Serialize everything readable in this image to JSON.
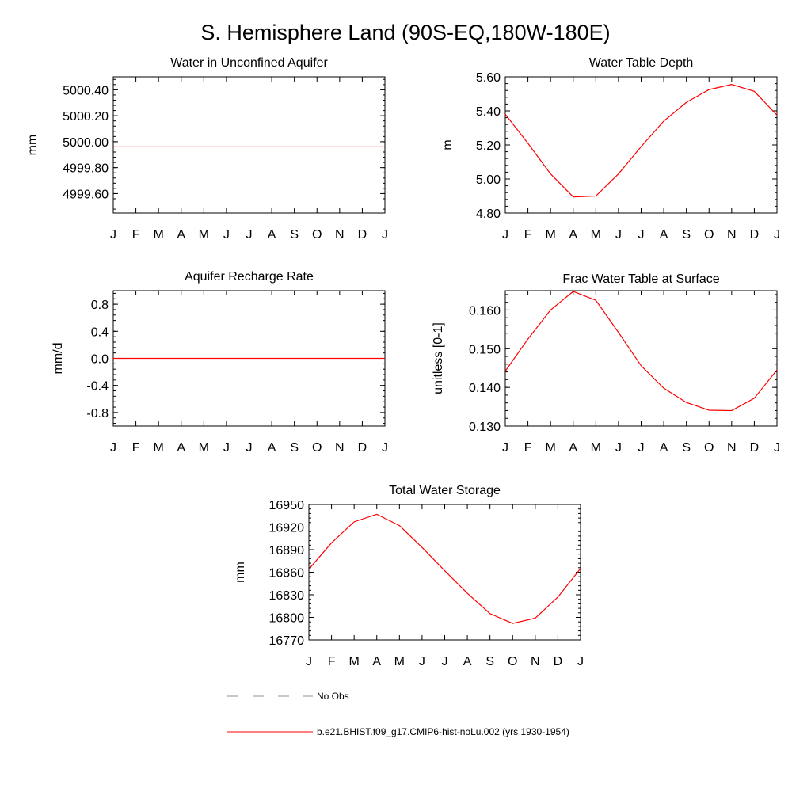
{
  "figure_title": "S. Hemisphere Land (90S-EQ,180W-180E)",
  "legend": {
    "items": [
      {
        "label": "No Obs",
        "style": "dashed",
        "color": "#8c8c8c"
      },
      {
        "label": "b.e21.BHIST.f09_g17.CMIP6-hist-noLu.002 (yrs 1930-1954)",
        "style": "solid",
        "color": "#ff0000"
      }
    ]
  },
  "colors": {
    "series": "#ff0000",
    "axis": "#000000",
    "obs": "#8c8c8c"
  },
  "chart_data": [
    {
      "type": "line",
      "title": "Water in Unconfined Aquifer",
      "ylabel": "mm",
      "x": [
        "J",
        "F",
        "M",
        "A",
        "M",
        "J",
        "J",
        "A",
        "S",
        "O",
        "N",
        "D",
        "J"
      ],
      "ylim": [
        4999.45,
        5000.5
      ],
      "yticks": [
        "4999.60",
        "4999.80",
        "5000.00",
        "5000.20",
        "5000.40"
      ],
      "ytick_values": [
        4999.6,
        4999.8,
        5000.0,
        5000.2,
        5000.4
      ],
      "series": [
        {
          "values": [
            4999.96,
            4999.96,
            4999.96,
            4999.96,
            4999.96,
            4999.96,
            4999.96,
            4999.96,
            4999.96,
            4999.96,
            4999.96,
            4999.96,
            4999.96
          ]
        }
      ]
    },
    {
      "type": "line",
      "title": "Water Table Depth",
      "ylabel": "m",
      "x": [
        "J",
        "F",
        "M",
        "A",
        "M",
        "J",
        "J",
        "A",
        "S",
        "O",
        "N",
        "D",
        "J"
      ],
      "ylim": [
        4.8,
        5.6
      ],
      "yticks": [
        "4.80",
        "5.00",
        "5.20",
        "5.40",
        "5.60"
      ],
      "ytick_values": [
        4.8,
        5.0,
        5.2,
        5.4,
        5.6
      ],
      "series": [
        {
          "values": [
            5.38,
            5.21,
            5.03,
            4.895,
            4.9,
            5.03,
            5.19,
            5.34,
            5.45,
            5.525,
            5.555,
            5.515,
            5.375
          ]
        }
      ]
    },
    {
      "type": "line",
      "title": "Aquifer Recharge Rate",
      "ylabel": "mm/d",
      "x": [
        "J",
        "F",
        "M",
        "A",
        "M",
        "J",
        "J",
        "A",
        "S",
        "O",
        "N",
        "D",
        "J"
      ],
      "ylim": [
        -1.0,
        1.0
      ],
      "yticks": [
        "-0.8",
        "-0.4",
        "0.0",
        "0.4",
        "0.8"
      ],
      "ytick_values": [
        -0.8,
        -0.4,
        0.0,
        0.4,
        0.8
      ],
      "series": [
        {
          "values": [
            0,
            0,
            0,
            0,
            0,
            0,
            0,
            0,
            0,
            0,
            0,
            0,
            0
          ]
        }
      ]
    },
    {
      "type": "line",
      "title": "Frac Water Table at Surface",
      "ylabel": "unitless [0-1]",
      "x": [
        "J",
        "F",
        "M",
        "A",
        "M",
        "J",
        "J",
        "A",
        "S",
        "O",
        "N",
        "D",
        "J"
      ],
      "ylim": [
        0.13,
        0.165
      ],
      "yticks": [
        "0.130",
        "0.140",
        "0.150",
        "0.160"
      ],
      "ytick_values": [
        0.13,
        0.14,
        0.15,
        0.16
      ],
      "series": [
        {
          "values": [
            0.1442,
            0.1525,
            0.16,
            0.1648,
            0.1625,
            0.1542,
            0.1456,
            0.1398,
            0.1361,
            0.1341,
            0.134,
            0.1372,
            0.1445
          ]
        }
      ]
    },
    {
      "type": "line",
      "title": "Total Water Storage",
      "ylabel": "mm",
      "x": [
        "J",
        "F",
        "M",
        "A",
        "M",
        "J",
        "J",
        "A",
        "S",
        "O",
        "N",
        "D",
        "J"
      ],
      "ylim": [
        16770,
        16950
      ],
      "yticks": [
        "16770",
        "16800",
        "16830",
        "16860",
        "16890",
        "16920",
        "16950"
      ],
      "ytick_values": [
        16770,
        16800,
        16830,
        16860,
        16890,
        16920,
        16950
      ],
      "series": [
        {
          "values": [
            16864,
            16899,
            16927,
            16937,
            16922,
            16893,
            16862,
            16832,
            16805,
            16792,
            16799,
            16827,
            16865
          ]
        }
      ]
    }
  ]
}
